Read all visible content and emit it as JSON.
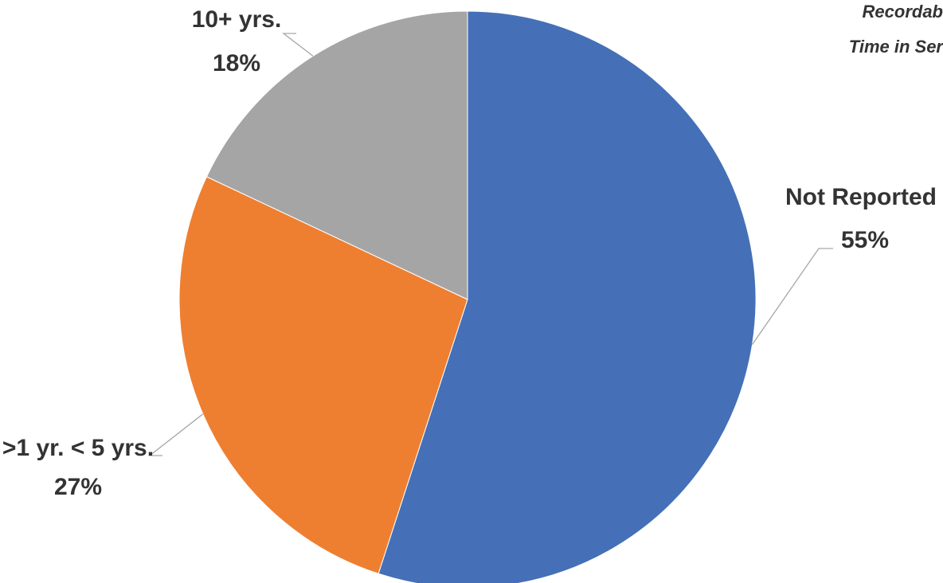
{
  "chart_data": {
    "type": "pie",
    "title_lines": [
      "Recordab",
      "Time in Ser"
    ],
    "categories": [
      "Not Reported",
      ">1 yr. < 5 yrs.",
      "10+ yrs."
    ],
    "values": [
      55,
      27,
      18
    ],
    "value_labels": [
      "55%",
      "27%",
      "18%"
    ],
    "colors": [
      "#4570b7",
      "#ee7f31",
      "#a5a5a5"
    ],
    "start_angle_deg": 0,
    "direction": "clockwise",
    "legend": "none",
    "data_labels": "category and percent, outside with leader lines"
  }
}
